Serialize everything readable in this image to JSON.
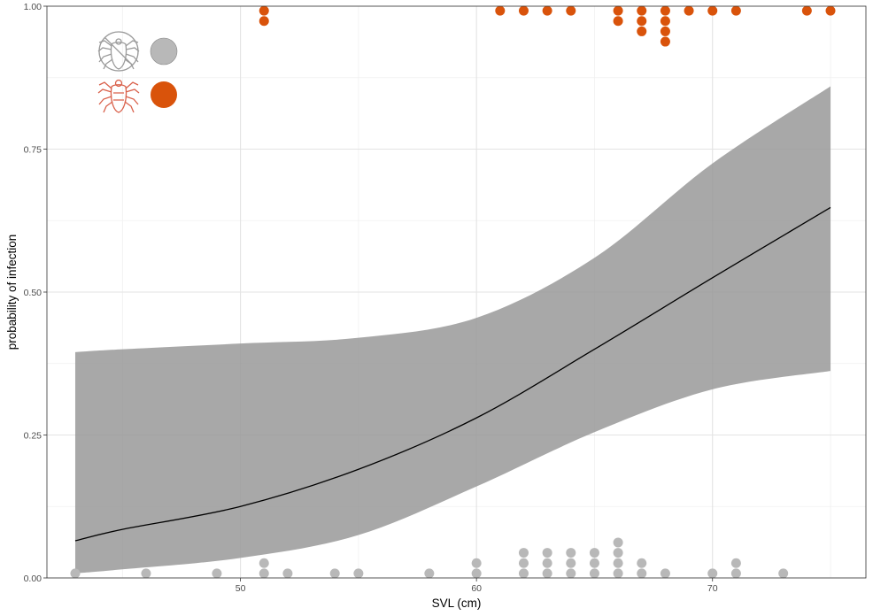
{
  "chart_data": {
    "type": "scatter",
    "xlabel": "SVL (cm)",
    "ylabel": "probability of infection",
    "xlim": [
      41.8,
      76.5
    ],
    "ylim": [
      0,
      1
    ],
    "x_ticks": [
      50,
      60,
      70
    ],
    "x_tick_labels": [
      "50",
      "60",
      "70"
    ],
    "y_ticks": [
      0,
      0.25,
      0.5,
      0.75,
      1
    ],
    "y_tick_labels": [
      "0.00",
      "0.25",
      "0.50",
      "0.75",
      "1.00"
    ],
    "grid": true,
    "legend_position": "top-left",
    "colors": {
      "uninfected": "#b8b8b8",
      "infected": "#d9530b",
      "band": "#999999",
      "line": "#000000"
    },
    "fit": {
      "x": [
        43,
        45,
        50,
        55,
        60,
        65,
        70,
        75
      ],
      "y": [
        0.065,
        0.085,
        0.125,
        0.19,
        0.28,
        0.4,
        0.525,
        0.648
      ],
      "lower": [
        0.008,
        0.015,
        0.035,
        0.075,
        0.16,
        0.255,
        0.33,
        0.362
      ],
      "upper": [
        0.395,
        0.4,
        0.41,
        0.42,
        0.455,
        0.56,
        0.725,
        0.86
      ]
    },
    "series": [
      {
        "color_key": "uninfected",
        "points": [
          [
            43,
            0.008
          ],
          [
            46,
            0.008
          ],
          [
            49,
            0.008
          ],
          [
            51,
            0.008
          ],
          [
            51,
            0.026
          ],
          [
            52,
            0.008
          ],
          [
            54,
            0.008
          ],
          [
            55,
            0.008
          ],
          [
            58,
            0.008
          ],
          [
            60,
            0.008
          ],
          [
            60,
            0.026
          ],
          [
            62,
            0.008
          ],
          [
            62,
            0.026
          ],
          [
            62,
            0.044
          ],
          [
            63,
            0.008
          ],
          [
            63,
            0.026
          ],
          [
            63,
            0.044
          ],
          [
            64,
            0.008
          ],
          [
            64,
            0.026
          ],
          [
            64,
            0.044
          ],
          [
            65,
            0.008
          ],
          [
            65,
            0.026
          ],
          [
            65,
            0.044
          ],
          [
            66,
            0.008
          ],
          [
            66,
            0.026
          ],
          [
            66,
            0.044
          ],
          [
            66,
            0.062
          ],
          [
            67,
            0.008
          ],
          [
            67,
            0.026
          ],
          [
            68,
            0.008
          ],
          [
            70,
            0.008
          ],
          [
            71,
            0.008
          ],
          [
            71,
            0.026
          ],
          [
            73,
            0.008
          ]
        ]
      },
      {
        "color_key": "infected",
        "points": [
          [
            51,
            0.992
          ],
          [
            51,
            0.974
          ],
          [
            61,
            0.992
          ],
          [
            62,
            0.992
          ],
          [
            63,
            0.992
          ],
          [
            64,
            0.992
          ],
          [
            66,
            0.992
          ],
          [
            66,
            0.974
          ],
          [
            67,
            0.992
          ],
          [
            67,
            0.974
          ],
          [
            67,
            0.956
          ],
          [
            68,
            0.992
          ],
          [
            68,
            0.974
          ],
          [
            68,
            0.956
          ],
          [
            68,
            0.938
          ],
          [
            69,
            0.992
          ],
          [
            70,
            0.992
          ],
          [
            71,
            0.992
          ],
          [
            74,
            0.992
          ],
          [
            75,
            0.992
          ]
        ]
      }
    ],
    "legend": [
      {
        "icon": "crossed-out-tick-icon",
        "color_key": "uninfected"
      },
      {
        "icon": "tick-icon",
        "color_key": "infected"
      }
    ]
  }
}
